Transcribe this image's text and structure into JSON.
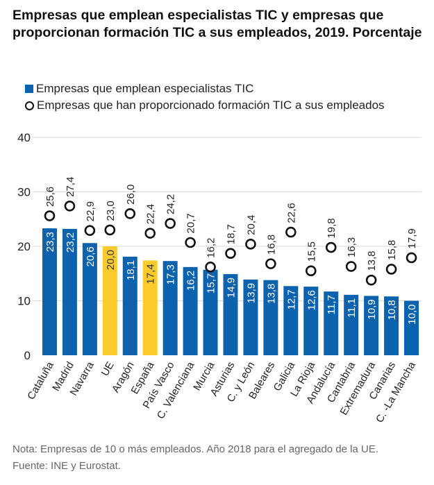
{
  "title": "Empresas que emplean especialistas TIC y empresas que proporcionan formación TIC a sus empleados, 2019. Porcentaje",
  "legend": {
    "bars_label": "Empresas que emplean especialistas TIC",
    "dots_label": "Empresas que han proporcionado formación TIC a sus empleados"
  },
  "colors": {
    "bar": "#0d62ad",
    "highlight": "#fdcb2e",
    "grid": "#d9d9d9",
    "dot_stroke": "#111111"
  },
  "chart_data": {
    "type": "bar",
    "title": "Empresas que emplean especialistas TIC y empresas que proporcionan formación TIC a sus empleados, 2019. Porcentaje",
    "categories": [
      "Cataluña",
      "Madrid",
      "Navarra",
      "UE",
      "Aragón",
      "España",
      "País Vasco",
      "C. Valenciana",
      "Murcia",
      "Asturias",
      "C. y León",
      "Baleares",
      "Galicia",
      "La Rioja",
      "Andalucía",
      "Cantabria",
      "Extremadura",
      "Canarias",
      "C. -La Mancha"
    ],
    "series": [
      {
        "name": "Empresas que emplean especialistas TIC",
        "type": "bar",
        "values": [
          23.3,
          23.2,
          20.6,
          20.0,
          18.1,
          17.4,
          17.3,
          16.2,
          15.7,
          14.9,
          13.9,
          13.8,
          12.7,
          12.6,
          11.7,
          11.1,
          10.9,
          10.8,
          10.0
        ],
        "labels": [
          "23,3",
          "23,2",
          "20,6",
          "20,0",
          "18,1",
          "17,4",
          "17,3",
          "16,2",
          "15,7",
          "14,9",
          "13,9",
          "13,8",
          "12,7",
          "12,6",
          "11,7",
          "11,1",
          "10,9",
          "10,8",
          "10,0"
        ]
      },
      {
        "name": "Empresas que han proporcionado formación TIC a sus empleados",
        "type": "scatter",
        "values": [
          25.6,
          27.4,
          22.9,
          23.0,
          26.0,
          22.4,
          24.2,
          20.7,
          16.2,
          18.7,
          20.4,
          16.8,
          22.6,
          15.5,
          19.8,
          16.3,
          13.8,
          15.8,
          17.9
        ],
        "labels": [
          "25,6",
          "27,4",
          "22,9",
          "23,0",
          "26,0",
          "22,4",
          "24,2",
          "20,7",
          "16,2",
          "18,7",
          "20,4",
          "16,8",
          "22,6",
          "15,5",
          "19,8",
          "16,3",
          "13,8",
          "15,8",
          "17,9"
        ]
      }
    ],
    "highlighted": [
      "UE",
      "España"
    ],
    "y_ticks": [
      0,
      10,
      20,
      30,
      40
    ],
    "ylim": [
      0,
      40
    ],
    "xlabel": "",
    "ylabel": "",
    "grid": true,
    "legend_position": "top-left"
  },
  "notes": {
    "note": "Nota: Empresas de 10 o más empleados. Año 2018 para el agregado de la UE.",
    "source": "Fuente: INE y Eurostat."
  }
}
